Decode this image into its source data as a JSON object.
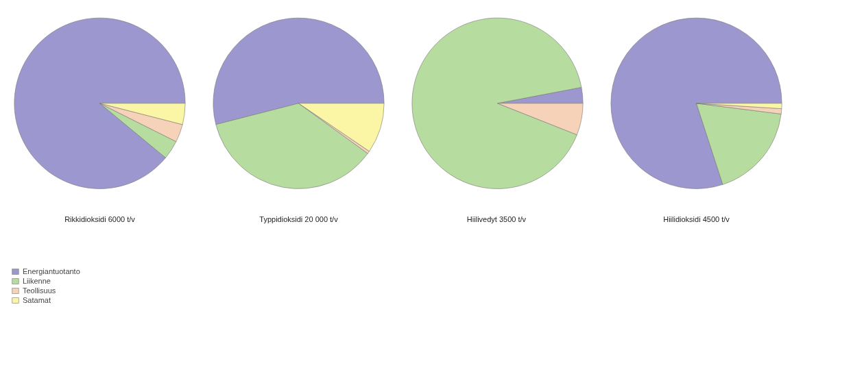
{
  "chart_data": [
    {
      "type": "pie",
      "title": "Rikkidioksidi 6000 t/v",
      "categories": [
        "Energiantuotanto",
        "Liikenne",
        "Teollisuus",
        "Satamat"
      ],
      "values": [
        89,
        3.6,
        3.4,
        4
      ],
      "colors": [
        "#9c97cf",
        "#b7dca0",
        "#f6d2b8",
        "#fbf6a6"
      ],
      "legend": "bottom left"
    },
    {
      "type": "pie",
      "title": "Typpidioksidi 20 000 t/v",
      "values": [
        54,
        36,
        0.5,
        9.5
      ],
      "colors": [
        "#9c97cf",
        "#b7dca0",
        "#f6d2b8",
        "#fbf6a6"
      ]
    },
    {
      "type": "pie",
      "title": "Hiilivedyt 3500  t/v",
      "values": [
        3,
        91,
        6,
        0
      ],
      "colors": [
        "#9c97cf",
        "#b7dca0",
        "#f6d2b8",
        "#fbf6a6"
      ]
    },
    {
      "type": "pie",
      "title": "Hiilidioksidi 4500 t/v",
      "values": [
        80,
        18,
        1,
        1
      ],
      "colors": [
        "#9c97cf",
        "#b7dca0",
        "#f6d2b8",
        "#fbf6a6"
      ]
    }
  ]
}
